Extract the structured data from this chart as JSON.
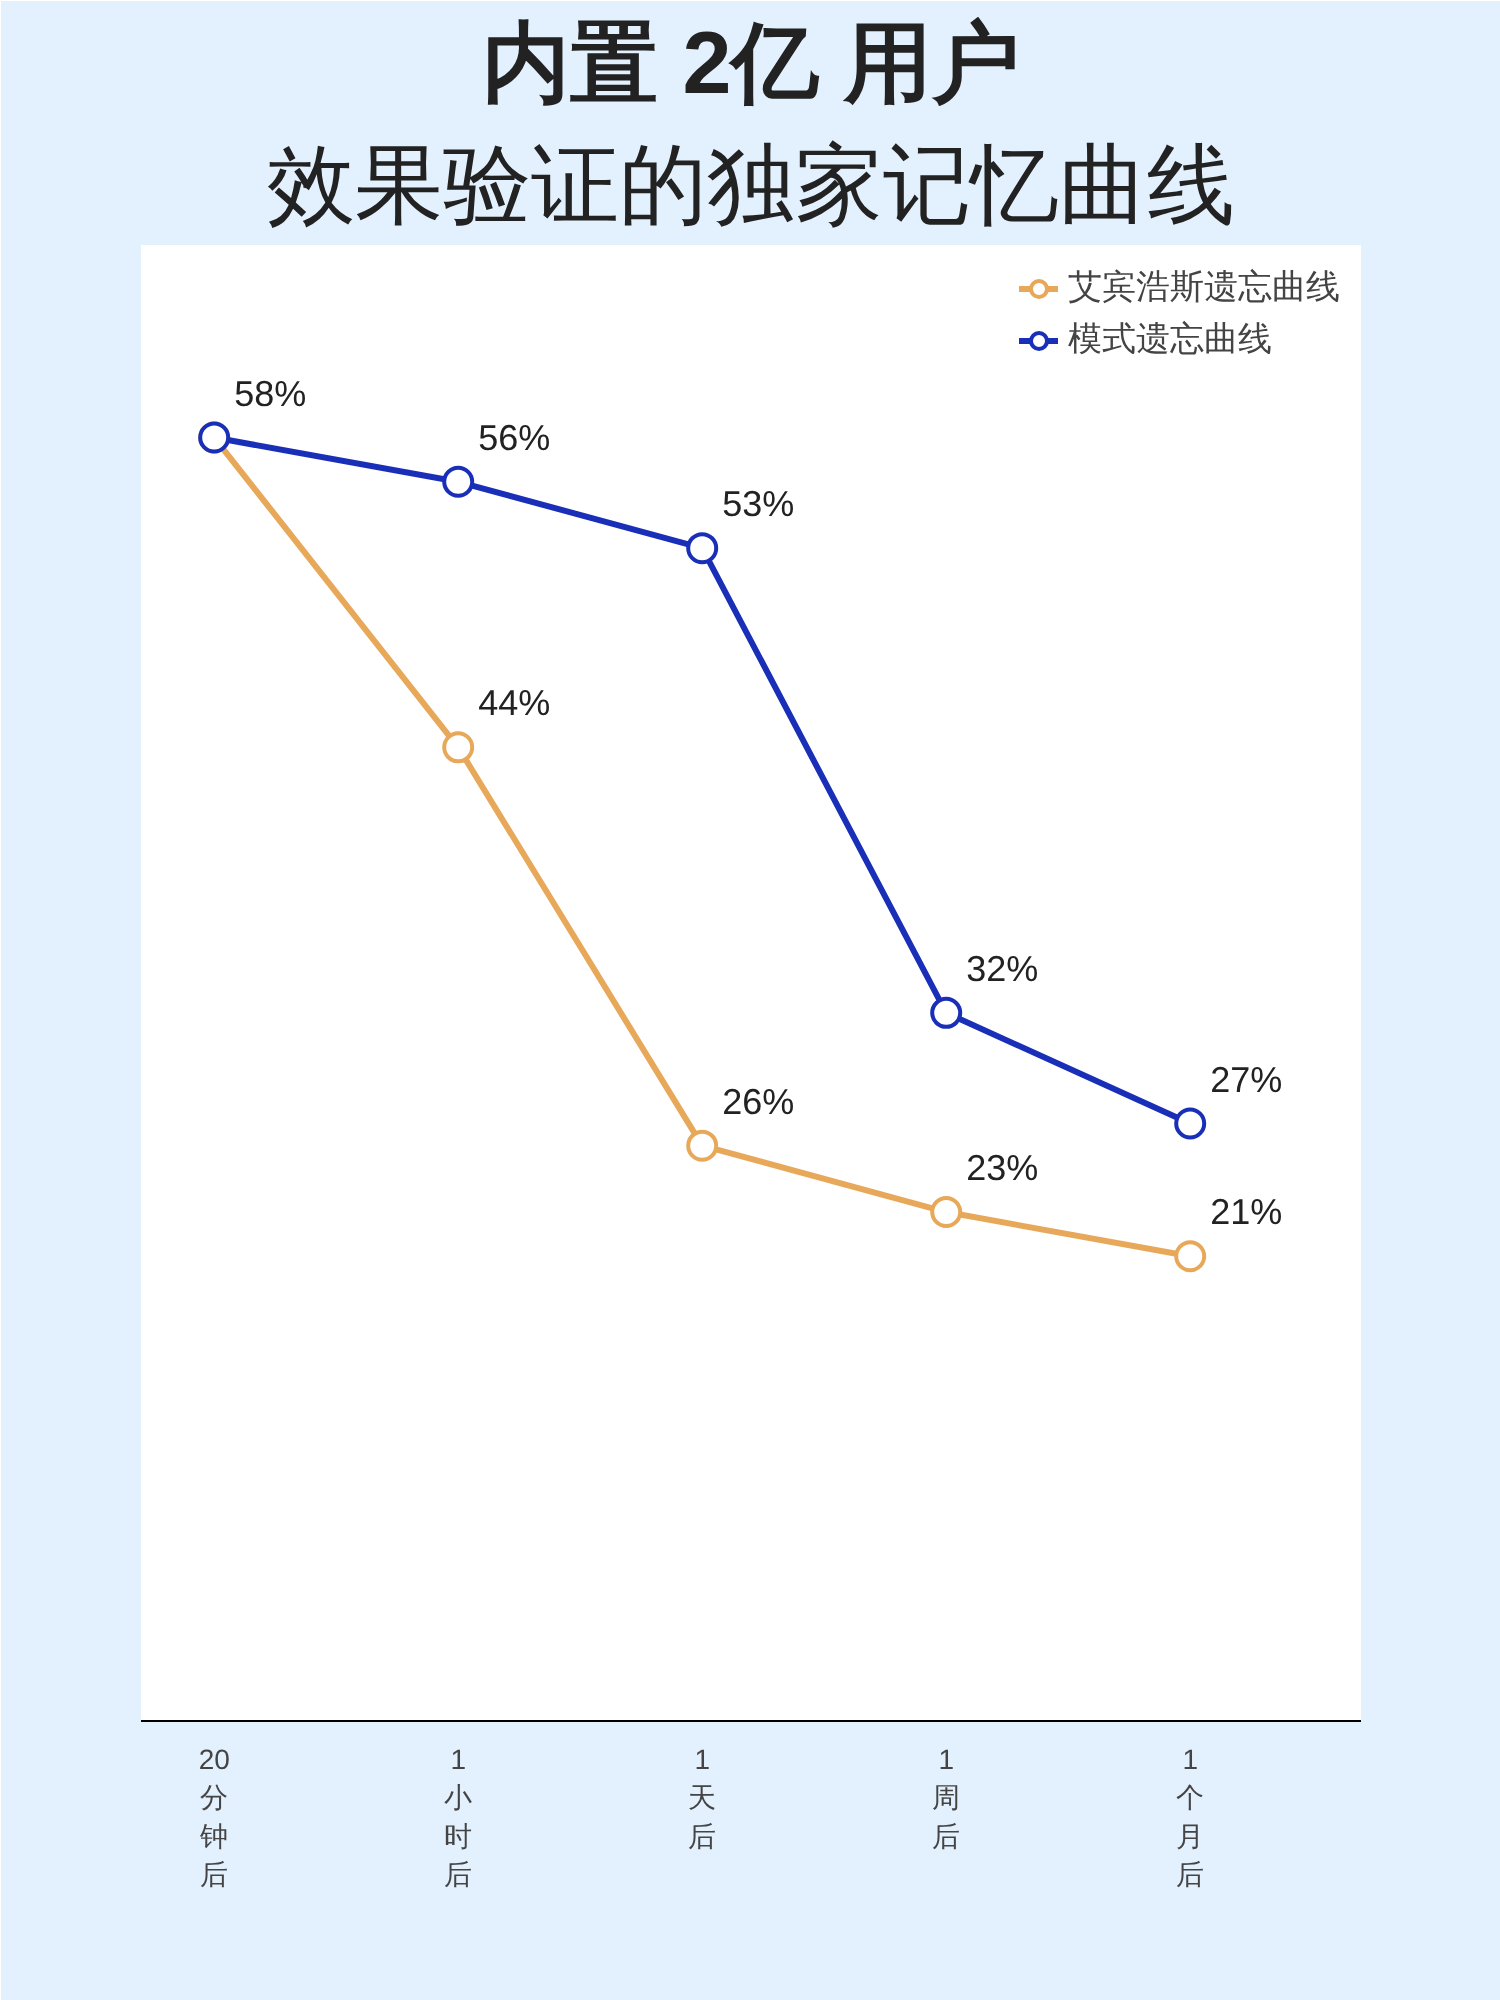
{
  "chart_data": {
    "type": "line",
    "title": "内置 2亿 用户",
    "subtitle": "效果验证的独家记忆曲线",
    "categories": [
      "20分钟后",
      "1小时后",
      "1天后",
      "1周后",
      "1个月后"
    ],
    "series": [
      {
        "name": "艾宾浩斯遗忘曲线",
        "color": "#e8a85a",
        "values": [
          58,
          44,
          26,
          23,
          21
        ],
        "value_labels": [
          null,
          "44%",
          "26%",
          "23%",
          "21%"
        ]
      },
      {
        "name": "模式遗忘曲线",
        "color": "#1a2fb8",
        "values": [
          58,
          56,
          53,
          32,
          27
        ],
        "value_labels": [
          "58%",
          "56%",
          "53%",
          "32%",
          "27%"
        ]
      }
    ],
    "marker": "circle",
    "grid": false,
    "legend": "top right"
  }
}
